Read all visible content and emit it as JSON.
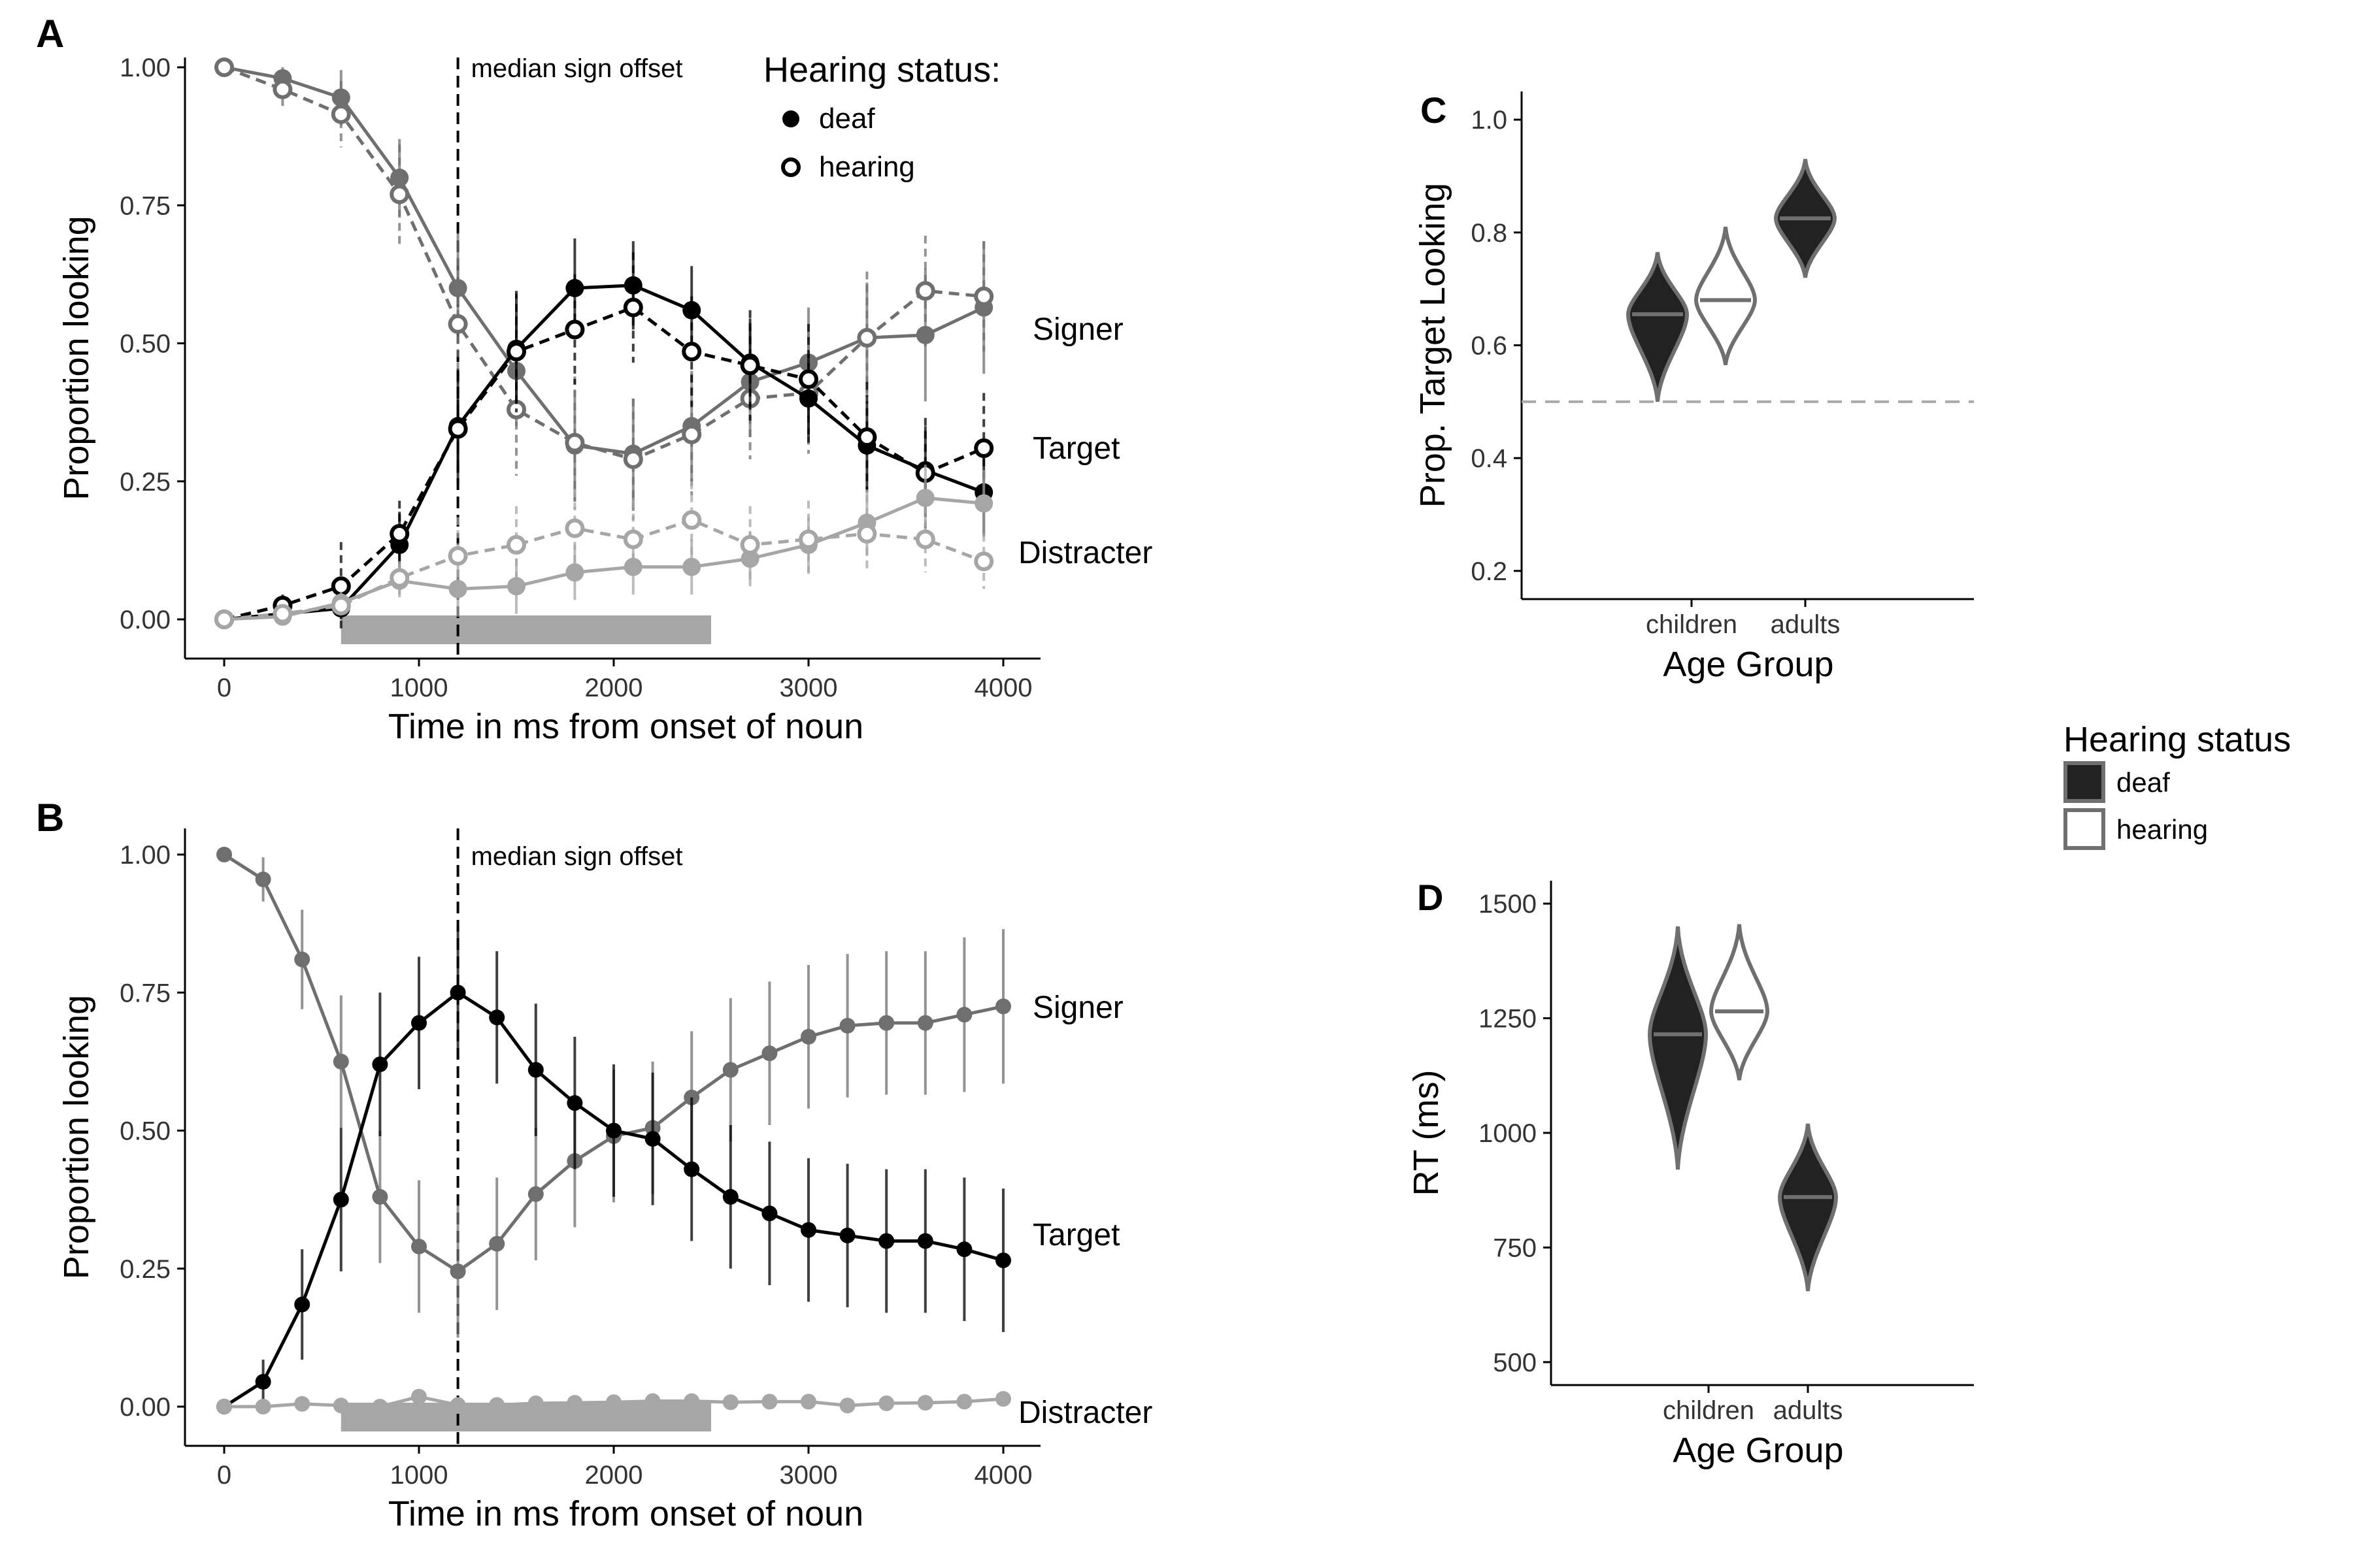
{
  "chart_data": [
    {
      "panel": "A",
      "type": "line",
      "xlabel": "Time in ms from onset of noun",
      "ylabel": "Proportion looking",
      "xlim": [
        0,
        4000
      ],
      "ylim": [
        0,
        1
      ],
      "xticks": [
        "0",
        "1000",
        "2000",
        "3000",
        "4000"
      ],
      "yticks": [
        "0.00",
        "0.25",
        "0.50",
        "0.75",
        "1.00"
      ],
      "annotation": "median sign offset",
      "annotation_x": 1200,
      "shaded_window": [
        600,
        2500
      ],
      "legend_title": "Hearing status:",
      "legend_labels": [
        "deaf",
        "hearing"
      ],
      "x": [
        0,
        300,
        600,
        900,
        1200,
        1500,
        1800,
        2100,
        2400,
        2700,
        3000,
        3300,
        3600,
        3900
      ],
      "series": [
        {
          "name": "Signer",
          "group": "deaf",
          "color": "#6f6f6f",
          "values": [
            1.0,
            0.98,
            0.945,
            0.8,
            0.6,
            0.45,
            0.315,
            0.3,
            0.35,
            0.43,
            0.465,
            0.51,
            0.515,
            0.565
          ],
          "err": [
            0.0,
            0.02,
            0.05,
            0.07,
            0.1,
            0.1,
            0.1,
            0.1,
            0.1,
            0.1,
            0.1,
            0.1,
            0.12,
            0.12
          ]
        },
        {
          "name": "Signer",
          "group": "hearing",
          "color": "#6f6f6f",
          "values": [
            1.0,
            0.96,
            0.915,
            0.77,
            0.535,
            0.38,
            0.32,
            0.29,
            0.335,
            0.4,
            0.41,
            0.51,
            0.595,
            0.585
          ],
          "err": [
            0.0,
            0.03,
            0.06,
            0.09,
            0.12,
            0.12,
            0.12,
            0.11,
            0.11,
            0.11,
            0.11,
            0.12,
            0.1,
            0.1
          ]
        },
        {
          "name": "Target",
          "group": "deaf",
          "color": "#000000",
          "values": [
            0.0,
            0.01,
            0.02,
            0.135,
            0.35,
            0.49,
            0.6,
            0.605,
            0.56,
            0.465,
            0.4,
            0.315,
            0.27,
            0.23
          ],
          "err": [
            0.0,
            0.01,
            0.02,
            0.06,
            0.1,
            0.1,
            0.09,
            0.08,
            0.08,
            0.08,
            0.08,
            0.08,
            0.08,
            0.08
          ]
        },
        {
          "name": "Target",
          "group": "hearing",
          "color": "#000000",
          "values": [
            0.0,
            0.025,
            0.06,
            0.155,
            0.345,
            0.485,
            0.525,
            0.565,
            0.485,
            0.46,
            0.435,
            0.33,
            0.265,
            0.31
          ],
          "err": [
            0.0,
            0.02,
            0.08,
            0.06,
            0.1,
            0.11,
            0.1,
            0.1,
            0.1,
            0.1,
            0.1,
            0.1,
            0.1,
            0.1
          ]
        },
        {
          "name": "Distracter",
          "group": "deaf",
          "color": "#a6a6a6",
          "values": [
            0.0,
            0.005,
            0.03,
            0.07,
            0.055,
            0.06,
            0.085,
            0.095,
            0.095,
            0.11,
            0.135,
            0.175,
            0.22,
            0.21
          ],
          "err": [
            0.0,
            0.01,
            0.02,
            0.03,
            0.05,
            0.05,
            0.05,
            0.05,
            0.05,
            0.05,
            0.05,
            0.06,
            0.06,
            0.06
          ]
        },
        {
          "name": "Distracter",
          "group": "hearing",
          "color": "#a6a6a6",
          "values": [
            0.0,
            0.01,
            0.025,
            0.075,
            0.115,
            0.135,
            0.165,
            0.145,
            0.18,
            0.135,
            0.145,
            0.155,
            0.145,
            0.105
          ],
          "err": [
            0.0,
            0.01,
            0.02,
            0.03,
            0.07,
            0.07,
            0.07,
            0.07,
            0.07,
            0.07,
            0.07,
            0.07,
            0.06,
            0.05
          ]
        }
      ]
    },
    {
      "panel": "B",
      "type": "line",
      "xlabel": "Time in ms from onset of noun",
      "ylabel": "Proportion looking",
      "xlim": [
        0,
        4000
      ],
      "ylim": [
        0,
        1
      ],
      "xticks": [
        "0",
        "1000",
        "2000",
        "3000",
        "4000"
      ],
      "yticks": [
        "0.00",
        "0.25",
        "0.50",
        "0.75",
        "1.00"
      ],
      "annotation": "median sign offset",
      "annotation_x": 1200,
      "shaded_window": [
        600,
        2500
      ],
      "x": [
        0,
        200,
        400,
        600,
        800,
        1000,
        1200,
        1400,
        1600,
        1800,
        2000,
        2200,
        2400,
        2600,
        2800,
        3000,
        3200,
        3400,
        3600,
        3800,
        4000
      ],
      "series": [
        {
          "name": "Signer",
          "color": "#6f6f6f",
          "values": [
            1.0,
            0.955,
            0.81,
            0.625,
            0.38,
            0.29,
            0.245,
            0.295,
            0.385,
            0.445,
            0.49,
            0.505,
            0.56,
            0.61,
            0.64,
            0.67,
            0.69,
            0.695,
            0.695,
            0.71,
            0.725
          ],
          "err": [
            0.0,
            0.04,
            0.09,
            0.12,
            0.12,
            0.12,
            0.12,
            0.12,
            0.12,
            0.12,
            0.12,
            0.12,
            0.12,
            0.13,
            0.13,
            0.13,
            0.13,
            0.13,
            0.13,
            0.14,
            0.14
          ]
        },
        {
          "name": "Target",
          "color": "#000000",
          "values": [
            0.0,
            0.045,
            0.185,
            0.375,
            0.62,
            0.695,
            0.75,
            0.705,
            0.61,
            0.55,
            0.5,
            0.485,
            0.43,
            0.38,
            0.35,
            0.32,
            0.31,
            0.3,
            0.3,
            0.285,
            0.265
          ],
          "err": [
            0.0,
            0.04,
            0.1,
            0.13,
            0.13,
            0.12,
            0.12,
            0.12,
            0.12,
            0.12,
            0.12,
            0.12,
            0.13,
            0.13,
            0.13,
            0.13,
            0.13,
            0.13,
            0.13,
            0.13,
            0.13
          ]
        },
        {
          "name": "Distracter",
          "color": "#a6a6a6",
          "values": [
            0.0,
            0.0,
            0.005,
            0.002,
            0.0,
            0.018,
            0.003,
            0.003,
            0.006,
            0.007,
            0.008,
            0.01,
            0.01,
            0.008,
            0.009,
            0.009,
            0.002,
            0.006,
            0.007,
            0.009,
            0.014
          ],
          "err": [
            0.0,
            0.0,
            0.0,
            0.0,
            0.0,
            0.0,
            0.0,
            0.0,
            0.0,
            0.0,
            0.0,
            0.0,
            0.0,
            0.0,
            0.0,
            0.0,
            0.0,
            0.0,
            0.0,
            0.0,
            0.0
          ]
        }
      ]
    },
    {
      "panel": "C",
      "type": "violin",
      "xlabel": "Age Group",
      "ylabel": "Prop. Target Looking",
      "ylim": [
        0.15,
        1.05
      ],
      "yticks": [
        "0.2",
        "0.4",
        "0.6",
        "0.8",
        "1.0"
      ],
      "reference_line": 0.5,
      "categories": [
        "children",
        "adults"
      ],
      "violins": [
        {
          "category": "children",
          "group": "deaf",
          "fill": "#222222",
          "median": 0.655,
          "min": 0.5,
          "max": 0.765,
          "mode": 0.655
        },
        {
          "category": "children",
          "group": "hearing",
          "fill": "#ffffff",
          "median": 0.68,
          "min": 0.565,
          "max": 0.81,
          "mode": 0.68
        },
        {
          "category": "adults",
          "group": "deaf",
          "fill": "#222222",
          "median": 0.825,
          "min": 0.72,
          "max": 0.93,
          "mode": 0.825
        }
      ]
    },
    {
      "panel": "D",
      "type": "violin",
      "xlabel": "Age Group",
      "ylabel": "RT (ms)",
      "ylim": [
        450,
        1550
      ],
      "yticks": [
        "500",
        "750",
        "1000",
        "1250",
        "1500"
      ],
      "categories": [
        "children",
        "adults"
      ],
      "violins": [
        {
          "category": "children",
          "group": "deaf",
          "fill": "#222222",
          "median": 1215,
          "min": 920,
          "max": 1450,
          "mode": 1215
        },
        {
          "category": "children",
          "group": "hearing",
          "fill": "#ffffff",
          "median": 1265,
          "min": 1115,
          "max": 1455,
          "mode": 1265
        },
        {
          "category": "adults",
          "group": "deaf",
          "fill": "#222222",
          "median": 860,
          "min": 655,
          "max": 1020,
          "mode": 860
        }
      ]
    }
  ],
  "legend_right": {
    "title": "Hearing status",
    "items": [
      {
        "label": "deaf",
        "fill": "#222222"
      },
      {
        "label": "hearing",
        "fill": "#ffffff"
      }
    ]
  },
  "colors": {
    "signer": "#6f6f6f",
    "target": "#000000",
    "distracter": "#a6a6a6",
    "violin_edge": "#6f6f6f",
    "shade": "#a6a6a6",
    "refline": "#aaaaaa"
  }
}
